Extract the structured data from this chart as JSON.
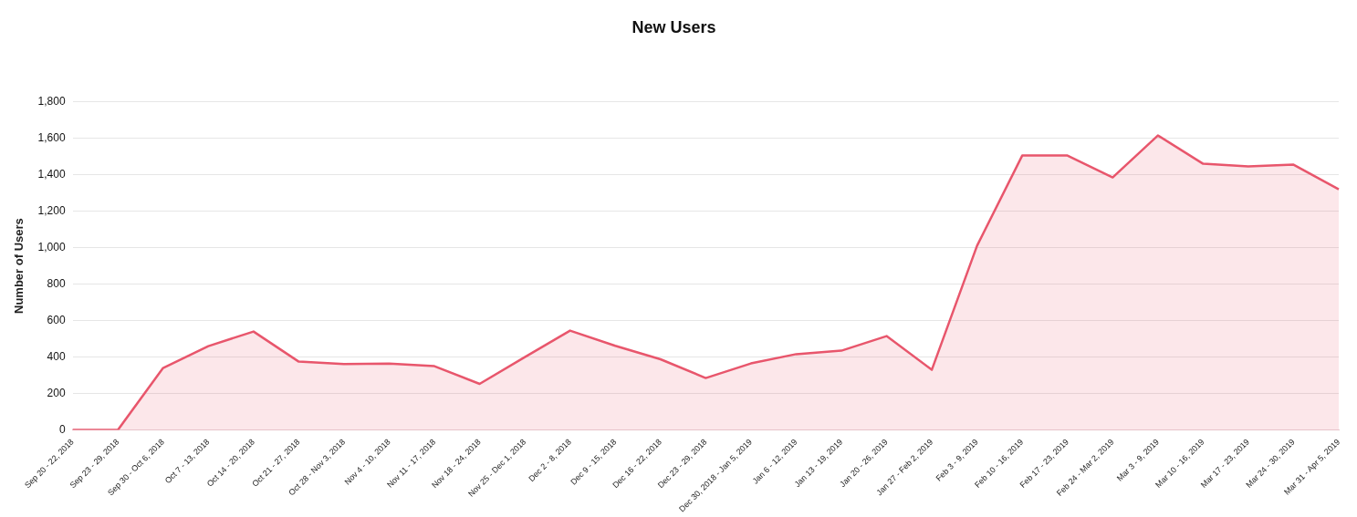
{
  "chart_data": {
    "type": "area",
    "title": "New Users",
    "ylabel": "Number of Users",
    "categories": [
      "Sep 20 - 22, 2018",
      "Sep 23 - 29, 2018",
      "Sep 30 - Oct 6, 2018",
      "Oct 7 - 13, 2018",
      "Oct 14 - 20, 2018",
      "Oct 21 - 27, 2018",
      "Oct 28 - Nov 3, 2018",
      "Nov 4 - 10, 2018",
      "Nov 11 - 17, 2018",
      "Nov 18 - 24, 2018",
      "Nov 25 - Dec 1, 2018",
      "Dec 2 - 8, 2018",
      "Dec 9 - 15, 2018",
      "Dec 16 - 22, 2018",
      "Dec 23 - 29, 2018",
      "Dec 30, 2018 - Jan 5, 2019",
      "Jan 6 - 12, 2019",
      "Jan 13 - 19, 2019",
      "Jan 20 - 26, 2019",
      "Jan 27 - Feb 2, 2019",
      "Feb 3 - 9, 2019",
      "Feb 10 - 16, 2019",
      "Feb 17 - 23, 2019",
      "Feb 24 - Mar 2, 2019",
      "Mar 3 - 9, 2019",
      "Mar 10 - 16, 2019",
      "Mar 17 - 23, 2019",
      "Mar 24 - 30, 2019",
      "Mar 31 - Apr 5, 2019"
    ],
    "series": [
      {
        "color": "#e8566c",
        "values": [
          0,
          0,
          340,
          460,
          540,
          375,
          362,
          364,
          350,
          253,
          400,
          545,
          462,
          388,
          285,
          365,
          416,
          435,
          515,
          330,
          1010,
          1505,
          1505,
          1385,
          1615,
          1460,
          1445,
          1455,
          1320
        ]
      }
    ],
    "ylim": [
      0,
      1800
    ],
    "yticks": [
      {
        "value": 0,
        "label": "0"
      },
      {
        "value": 200,
        "label": "200"
      },
      {
        "value": 400,
        "label": "400"
      },
      {
        "value": 600,
        "label": "600"
      },
      {
        "value": 800,
        "label": "800"
      },
      {
        "value": 1000,
        "label": "1,000"
      },
      {
        "value": 1200,
        "label": "1,200"
      },
      {
        "value": 1400,
        "label": "1,400"
      },
      {
        "value": 1600,
        "label": "1,600"
      },
      {
        "value": 1800,
        "label": "1,800"
      }
    ],
    "grid": "y",
    "legend": false,
    "marker": "none",
    "line_style": "solid"
  }
}
